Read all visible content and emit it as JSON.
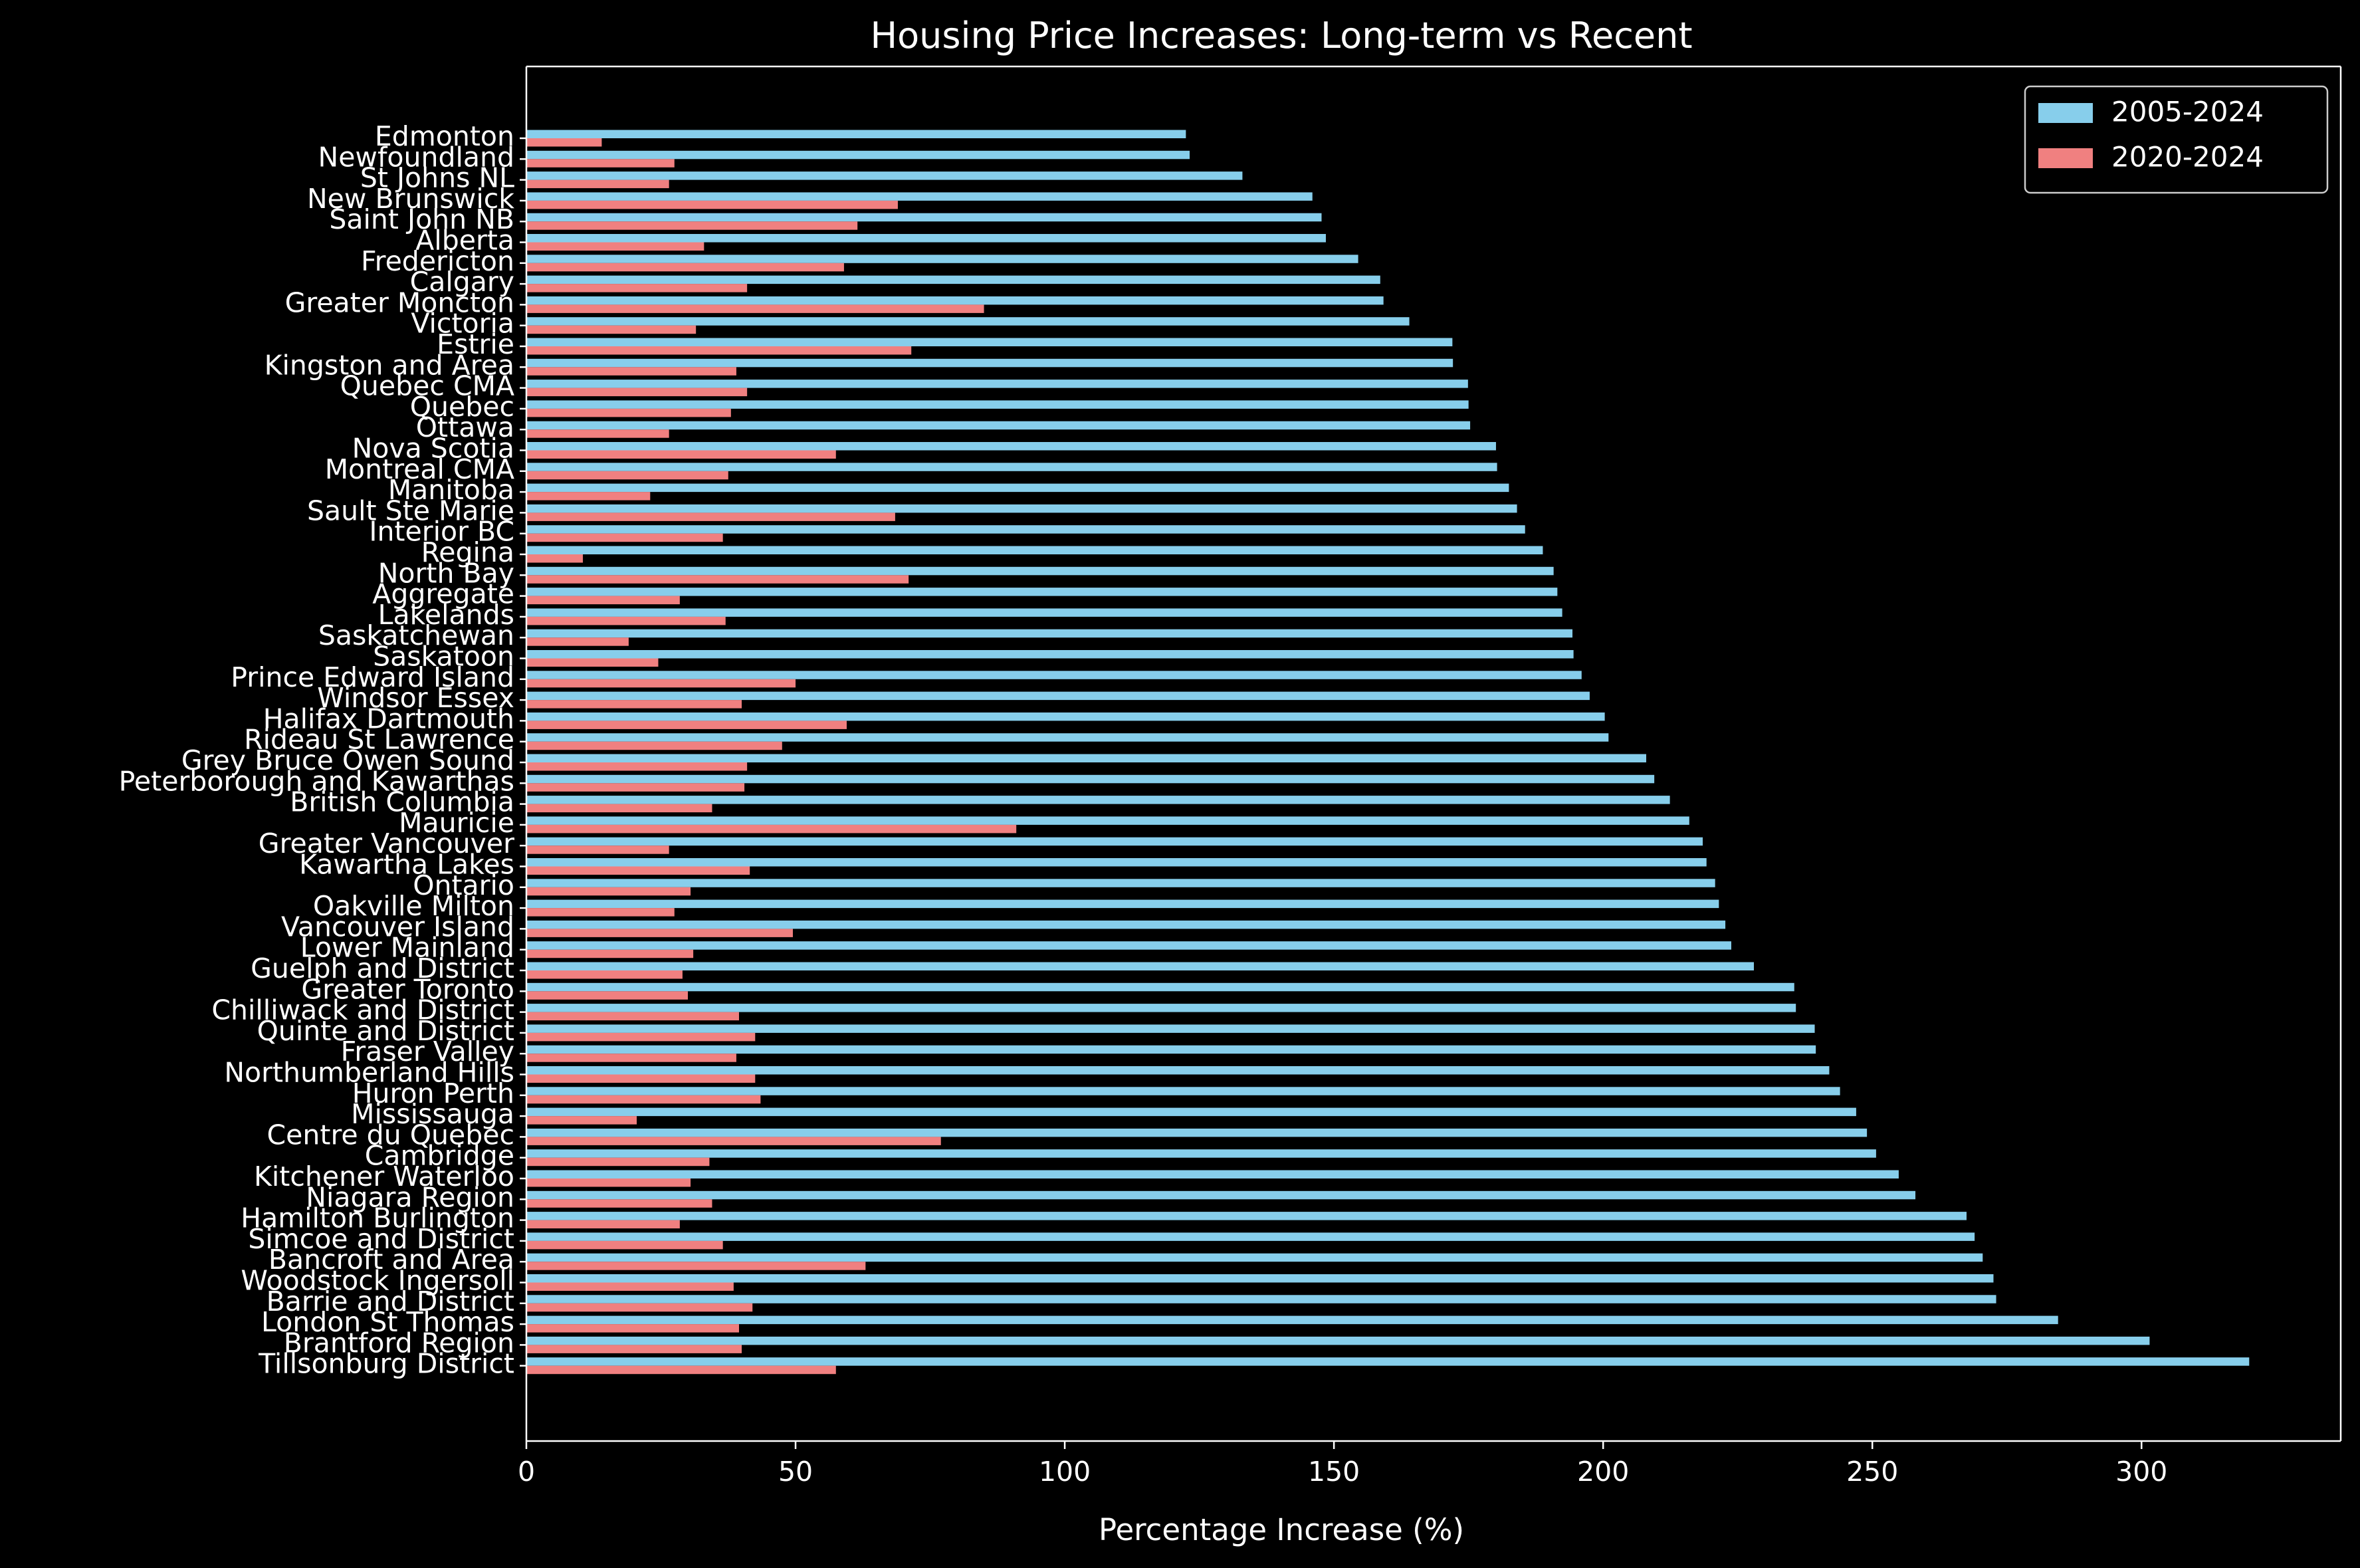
{
  "chart_data": {
    "type": "bar",
    "orientation": "horizontal",
    "title": "Housing Price Increases: Long-term vs Recent",
    "xlabel": "Percentage Increase (%)",
    "ylabel": "",
    "xlim": [
      0,
      337
    ],
    "xticks": [
      0,
      50,
      100,
      150,
      200,
      250,
      300
    ],
    "grid": false,
    "legend_position": "top-right",
    "categories": [
      "Edmonton",
      "Newfoundland",
      "St Johns NL",
      "New Brunswick",
      "Saint John NB",
      "Alberta",
      "Fredericton",
      "Calgary",
      "Greater Moncton",
      "Victoria",
      "Estrie",
      "Kingston and Area",
      "Quebec CMA",
      "Quebec",
      "Ottawa",
      "Nova Scotia",
      "Montreal CMA",
      "Manitoba",
      "Sault Ste Marie",
      "Interior BC",
      "Regina",
      "North Bay",
      "Aggregate",
      "Lakelands",
      "Saskatchewan",
      "Saskatoon",
      "Prince Edward Island",
      "Windsor Essex",
      "Halifax Dartmouth",
      "Rideau St Lawrence",
      "Grey Bruce Owen Sound",
      "Peterborough and Kawarthas",
      "British Columbia",
      "Mauricie",
      "Greater Vancouver",
      "Kawartha Lakes",
      "Ontario",
      "Oakville Milton",
      "Vancouver Island",
      "Lower Mainland",
      "Guelph and District",
      "Greater Toronto",
      "Chilliwack and District",
      "Quinte and District",
      "Fraser Valley",
      "Northumberland Hills",
      "Huron Perth",
      "Mississauga",
      "Centre du Quebec",
      "Cambridge",
      "Kitchener Waterloo",
      "Niagara Region",
      "Hamilton Burlington",
      "Simcoe and District",
      "Bancroft and Area",
      "Woodstock Ingersoll",
      "Barrie and District",
      "London St Thomas",
      "Brantford Region",
      "Tillsonburg District"
    ],
    "series": [
      {
        "name": "2005-2024",
        "color": "#87ceeb",
        "values": [
          122.5,
          123.2,
          133.0,
          146.0,
          147.7,
          148.5,
          154.5,
          158.6,
          159.2,
          164.0,
          172.0,
          172.1,
          174.9,
          175.0,
          175.3,
          180.1,
          180.3,
          182.5,
          184.0,
          185.5,
          188.8,
          190.8,
          191.5,
          192.4,
          194.3,
          194.5,
          196.0,
          197.5,
          200.3,
          201.0,
          208.0,
          209.5,
          212.4,
          216.0,
          218.5,
          219.2,
          220.8,
          221.5,
          222.7,
          223.8,
          228.0,
          235.5,
          235.8,
          239.3,
          239.5,
          242.0,
          244.0,
          247.0,
          249.0,
          250.7,
          254.9,
          258.0,
          267.5,
          269.0,
          270.5,
          272.5,
          273.0,
          284.5,
          301.5,
          320.0
        ]
      },
      {
        "name": "2020-2024",
        "color": "#f08080",
        "values": [
          14.0,
          27.5,
          26.5,
          69.0,
          61.5,
          33.0,
          59.0,
          41.0,
          85.0,
          31.5,
          71.5,
          39.0,
          41.0,
          38.0,
          26.5,
          57.5,
          37.5,
          23.0,
          68.5,
          36.5,
          10.5,
          71.0,
          28.5,
          37.0,
          19.0,
          24.5,
          50.0,
          40.0,
          59.5,
          47.5,
          41.0,
          40.5,
          34.5,
          91.0,
          26.5,
          41.5,
          30.5,
          27.5,
          49.5,
          31.0,
          29.0,
          30.0,
          39.5,
          42.5,
          39.0,
          42.5,
          43.5,
          20.5,
          77.0,
          34.0,
          30.5,
          34.5,
          28.5,
          36.5,
          63.0,
          38.5,
          42.0,
          39.5,
          40.0,
          57.5
        ]
      }
    ]
  }
}
